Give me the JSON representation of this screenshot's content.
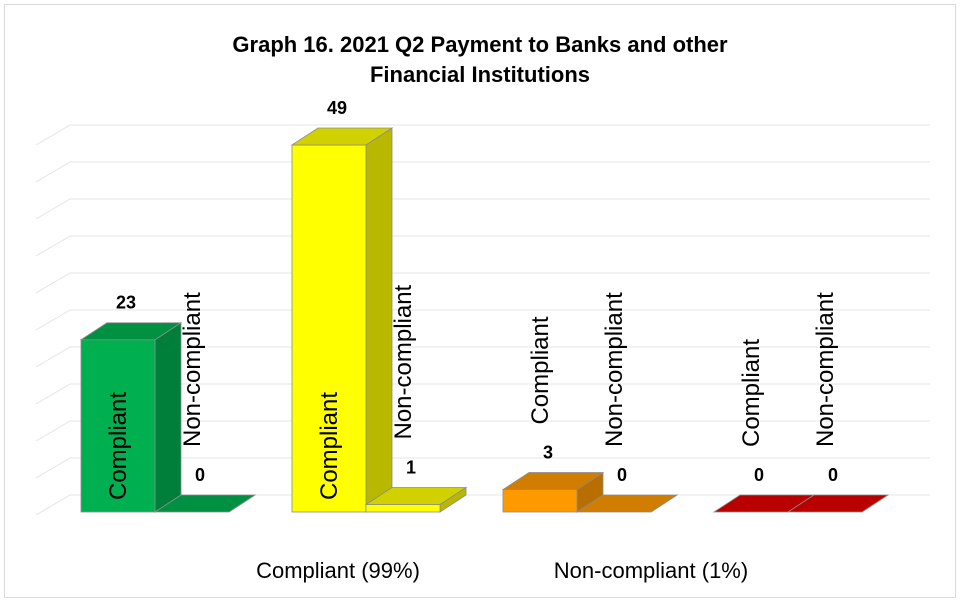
{
  "chart_data": {
    "type": "bar",
    "title_lines": [
      "Graph 16. 2021 Q2 Payment to Banks and other",
      "Financial Institutions"
    ],
    "groups": [
      {
        "bars": [
          {
            "label": "Compliant",
            "value": 23,
            "color": "#00b050"
          },
          {
            "label": "Non-compliant",
            "value": 0,
            "color": "#00b050"
          }
        ]
      },
      {
        "bars": [
          {
            "label": "Compliant",
            "value": 49,
            "color": "#ffff00"
          },
          {
            "label": "Non-compliant",
            "value": 1,
            "color": "#ffff00"
          }
        ]
      },
      {
        "bars": [
          {
            "label": "Compliant",
            "value": 3,
            "color": "#ff9900"
          },
          {
            "label": "Non-compliant",
            "value": 0,
            "color": "#ff9900"
          }
        ]
      },
      {
        "bars": [
          {
            "label": "Compliant",
            "value": 0,
            "color": "#e00000"
          },
          {
            "label": "Non-compliant",
            "value": 0,
            "color": "#e00000"
          }
        ]
      }
    ],
    "category_labels": [
      "Compliant (99%)",
      "Non-compliant (1%)"
    ],
    "grid": true,
    "three_d": true
  }
}
